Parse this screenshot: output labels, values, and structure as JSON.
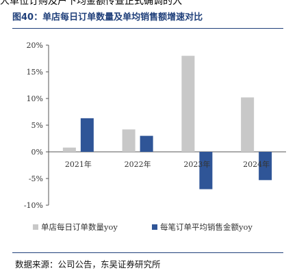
{
  "top_fragment": "人单位订购及户下均金额传查正式确调的入",
  "figure_title": "图40：单店每日订单数量及单均销售额增速对比",
  "source_note": "数据来源：公司公告，东吴证券研究所",
  "colors": {
    "series1": "#c8c8c8",
    "series2": "#2f5597",
    "accent": "#1f3f7a"
  },
  "chart_data": {
    "type": "bar",
    "categories": [
      "2021年",
      "2022年",
      "2023年",
      "2024年"
    ],
    "series": [
      {
        "name": "单店每日订单数量yoy",
        "values": [
          0.8,
          4.2,
          18.0,
          10.2
        ]
      },
      {
        "name": "每笔订单平均销售金额yoy",
        "values": [
          6.3,
          3.0,
          -7.0,
          -5.3
        ]
      }
    ],
    "ylim": [
      -10,
      20
    ],
    "yticks": [
      "-10%",
      "-5%",
      "0%",
      "5%",
      "10%",
      "15%",
      "20%"
    ],
    "ytick_values": [
      -10,
      -5,
      0,
      5,
      10,
      15,
      20
    ],
    "legend_position": "bottom",
    "grid": false
  }
}
